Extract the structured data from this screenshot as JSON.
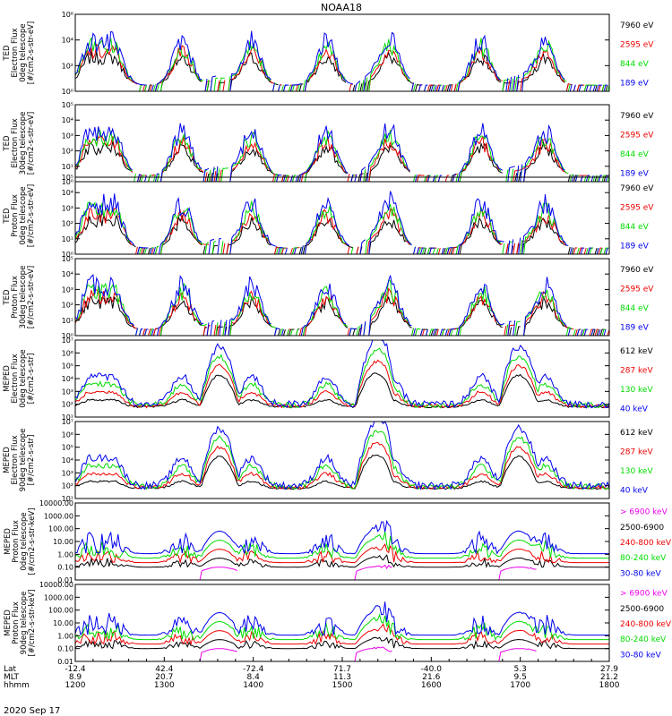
{
  "chart_data": {
    "type": "line",
    "title": "NOAA18",
    "x_range_hhmm": [
      "1200",
      "1800"
    ],
    "x_tick_rows": [
      {
        "label": "Lat",
        "values": [
          "-12.4",
          "42.4",
          "-72.4",
          "71.7",
          "-40.0",
          "5.3",
          "27.9"
        ]
      },
      {
        "label": "MLT",
        "values": [
          "8.9",
          "20.7",
          "8.4",
          "11.3",
          "21.6",
          "9.5",
          "21.2"
        ]
      },
      {
        "label": "hhmm",
        "values": [
          "1200",
          "1300",
          "1400",
          "1500",
          "1600",
          "1700",
          "1800"
        ]
      }
    ],
    "date": "2020 Sep 17",
    "panels": [
      {
        "ylabel": [
          "TED",
          "Electron Flux",
          "0deg telescope",
          "[#/cm2-s-str-eV]"
        ],
        "y_scale": "log",
        "ylim": [
          1,
          1000000
        ],
        "y_ticks": [
          {
            "v": 1,
            "t": "10⁰"
          },
          {
            "v": 100,
            "t": "10²"
          },
          {
            "v": 10000,
            "t": "10⁴"
          },
          {
            "v": 1000000,
            "t": "10⁶"
          }
        ],
        "series": [
          {
            "name": "7960 eV",
            "color": "#000000"
          },
          {
            "name": "2595 eV",
            "color": "#ee0000"
          },
          {
            "name": "844 eV",
            "color": "#00dd00"
          },
          {
            "name": "189 eV",
            "color": "#0000ee"
          }
        ]
      },
      {
        "ylabel": [
          "TED",
          "Electron Flux",
          "30deg telescope",
          "[#/cm2-s-str-eV]"
        ],
        "y_scale": "log",
        "ylim": [
          1,
          100000
        ],
        "y_ticks": [
          {
            "v": 1,
            "t": "10⁰"
          },
          {
            "v": 10,
            "t": "10¹"
          },
          {
            "v": 100,
            "t": "10²"
          },
          {
            "v": 1000,
            "t": "10³"
          },
          {
            "v": 10000,
            "t": "10⁴"
          },
          {
            "v": 100000,
            "t": "10⁵"
          }
        ],
        "series": [
          {
            "name": "7960 eV",
            "color": "#000000"
          },
          {
            "name": "2595 eV",
            "color": "#ee0000"
          },
          {
            "name": "844 eV",
            "color": "#00dd00"
          },
          {
            "name": "189 eV",
            "color": "#0000ee"
          }
        ]
      },
      {
        "ylabel": [
          "TED",
          "Proton Flux",
          "0deg telescope",
          "[#/cm2-s-str-eV]"
        ],
        "y_scale": "log",
        "ylim": [
          1,
          100000
        ],
        "y_ticks": [
          {
            "v": 1,
            "t": "10⁰"
          },
          {
            "v": 10,
            "t": "10¹"
          },
          {
            "v": 100,
            "t": "10²"
          },
          {
            "v": 1000,
            "t": "10³"
          },
          {
            "v": 10000,
            "t": "10⁴"
          },
          {
            "v": 100000,
            "t": "10⁵"
          }
        ],
        "series": [
          {
            "name": "7960 eV",
            "color": "#000000"
          },
          {
            "name": "2595 eV",
            "color": "#ee0000"
          },
          {
            "name": "844 eV",
            "color": "#00dd00"
          },
          {
            "name": "189 eV",
            "color": "#0000ee"
          }
        ]
      },
      {
        "ylabel": [
          "TED",
          "Proton Flux",
          "30deg telescope",
          "[#/cm2-s-str-eV]"
        ],
        "y_scale": "log",
        "ylim": [
          1,
          100000
        ],
        "y_ticks": [
          {
            "v": 1,
            "t": "10⁰"
          },
          {
            "v": 10,
            "t": "10¹"
          },
          {
            "v": 100,
            "t": "10²"
          },
          {
            "v": 1000,
            "t": "10³"
          },
          {
            "v": 10000,
            "t": "10⁴"
          },
          {
            "v": 100000,
            "t": "10⁵"
          }
        ],
        "series": [
          {
            "name": "7960 eV",
            "color": "#000000"
          },
          {
            "name": "2595 eV",
            "color": "#ee0000"
          },
          {
            "name": "844 eV",
            "color": "#00dd00"
          },
          {
            "name": "189 eV",
            "color": "#0000ee"
          }
        ]
      },
      {
        "ylabel": [
          "MEPED",
          "Electron Flux",
          "0deg telescope",
          "[#/cm2-s-str]"
        ],
        "y_scale": "log",
        "ylim": [
          10,
          10000000
        ],
        "y_ticks": [
          {
            "v": 10,
            "t": "10¹"
          },
          {
            "v": 100,
            "t": "10²"
          },
          {
            "v": 1000,
            "t": "10³"
          },
          {
            "v": 10000,
            "t": "10⁴"
          },
          {
            "v": 100000,
            "t": "10⁵"
          },
          {
            "v": 1000000,
            "t": "10⁶"
          },
          {
            "v": 10000000,
            "t": "10⁷"
          }
        ],
        "series": [
          {
            "name": "612 keV",
            "color": "#000000"
          },
          {
            "name": "287 keV",
            "color": "#ee0000"
          },
          {
            "name": "130 keV",
            "color": "#00dd00"
          },
          {
            "name": "40 keV",
            "color": "#0000ee"
          }
        ]
      },
      {
        "ylabel": [
          "MEPED",
          "Electron Flux",
          "90deg telescope",
          "[#/cm2-s-str]"
        ],
        "y_scale": "log",
        "ylim": [
          10,
          10000000
        ],
        "y_ticks": [
          {
            "v": 10,
            "t": "10¹"
          },
          {
            "v": 100,
            "t": "10²"
          },
          {
            "v": 1000,
            "t": "10³"
          },
          {
            "v": 10000,
            "t": "10⁴"
          },
          {
            "v": 100000,
            "t": "10⁵"
          },
          {
            "v": 1000000,
            "t": "10⁶"
          },
          {
            "v": 10000000,
            "t": "10⁷"
          }
        ],
        "series": [
          {
            "name": "612 keV",
            "color": "#000000"
          },
          {
            "name": "287 keV",
            "color": "#ee0000"
          },
          {
            "name": "130 keV",
            "color": "#00dd00"
          },
          {
            "name": "40 keV",
            "color": "#0000ee"
          }
        ]
      },
      {
        "ylabel": [
          "MEPED",
          "Proton Flux",
          "0deg telescope",
          "[#/cm2-s-str-keV]"
        ],
        "y_scale": "log",
        "ylim": [
          0.01,
          10000
        ],
        "y_ticks": [
          {
            "v": 0.01,
            "t": "0.01"
          },
          {
            "v": 0.1,
            "t": "0.10"
          },
          {
            "v": 1,
            "t": "1.00"
          },
          {
            "v": 10,
            "t": "10.00"
          },
          {
            "v": 100,
            "t": "100.00"
          },
          {
            "v": 1000,
            "t": "1000.00"
          },
          {
            "v": 10000,
            "t": "10000.00"
          }
        ],
        "series": [
          {
            "name": "> 6900 keV",
            "color": "#ee00ee"
          },
          {
            "name": "2500-6900",
            "color": "#000000"
          },
          {
            "name": "240-800 keV",
            "color": "#ee0000"
          },
          {
            "name": "80-240 keV",
            "color": "#00dd00"
          },
          {
            "name": "30-80 keV",
            "color": "#0000ee"
          }
        ]
      },
      {
        "ylabel": [
          "MEPED",
          "Proton Flux",
          "90deg telescope",
          "[#/cm2-s-str-keV]"
        ],
        "y_scale": "log",
        "ylim": [
          0.01,
          10000
        ],
        "y_ticks": [
          {
            "v": 0.01,
            "t": "0.01"
          },
          {
            "v": 0.1,
            "t": "0.10"
          },
          {
            "v": 1,
            "t": "1.00"
          },
          {
            "v": 10,
            "t": "10.00"
          },
          {
            "v": 100,
            "t": "100.00"
          },
          {
            "v": 1000,
            "t": "1000.00"
          },
          {
            "v": 10000,
            "t": "10000.00"
          }
        ],
        "series": [
          {
            "name": "> 6900 keV",
            "color": "#ee00ee"
          },
          {
            "name": "2500-6900",
            "color": "#000000"
          },
          {
            "name": "240-800 keV",
            "color": "#ee0000"
          },
          {
            "name": "80-240 keV",
            "color": "#00dd00"
          },
          {
            "name": "30-80 keV",
            "color": "#0000ee"
          }
        ]
      }
    ]
  }
}
